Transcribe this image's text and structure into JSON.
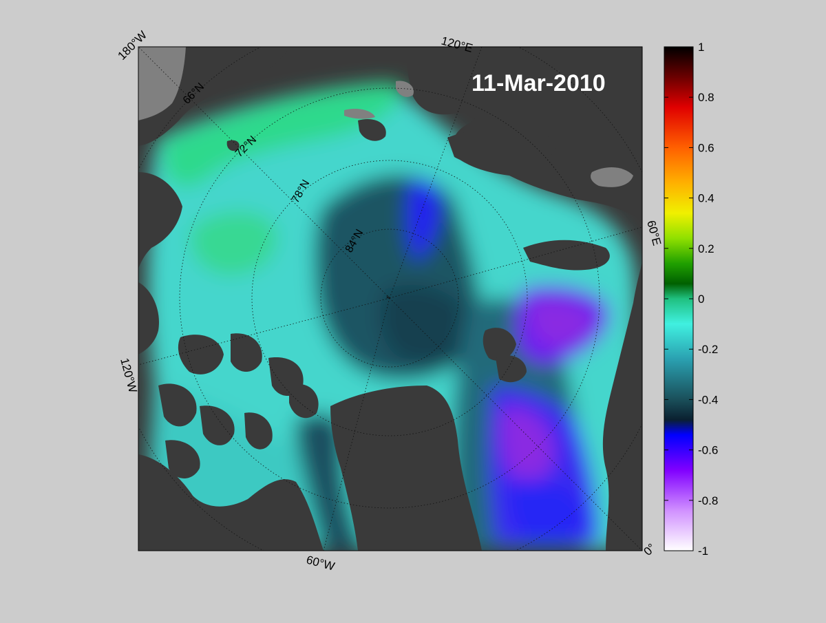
{
  "map": {
    "date_label": "11-Mar-2010",
    "longitude_labels": [
      "180°W",
      "120°E",
      "60°E",
      "0°",
      "60°W",
      "120°W"
    ],
    "latitude_labels": [
      "66°N",
      "72°N",
      "78°N",
      "84°N"
    ],
    "colors": {
      "background": "#cccccc",
      "land": "#3a3a3a",
      "no_data_land": "#808080",
      "ocean_green": "#35d88f",
      "ocean_cyan": "#4fd8d0",
      "ocean_teal": "#2f8f95",
      "ocean_dark_teal": "#1f4f60",
      "blue": "#2020ff",
      "purple": "#8a2be2"
    }
  },
  "colorbar": {
    "ticks": [
      "1",
      "0.8",
      "0.6",
      "0.4",
      "0.2",
      "0",
      "-0.2",
      "-0.4",
      "-0.6",
      "-0.8",
      "-1"
    ],
    "min": -1,
    "max": 1,
    "colors_top_to_bottom": [
      "#000000",
      "#8b0000",
      "#ff2000",
      "#ff8c00",
      "#ffd700",
      "#c8ff00",
      "#3cb000",
      "#006400",
      "#008040",
      "#30e8a0",
      "#40e0e0",
      "#2090a0",
      "#154040",
      "#0000ff",
      "#8a00ff",
      "#d080ff",
      "#ffffff"
    ]
  }
}
